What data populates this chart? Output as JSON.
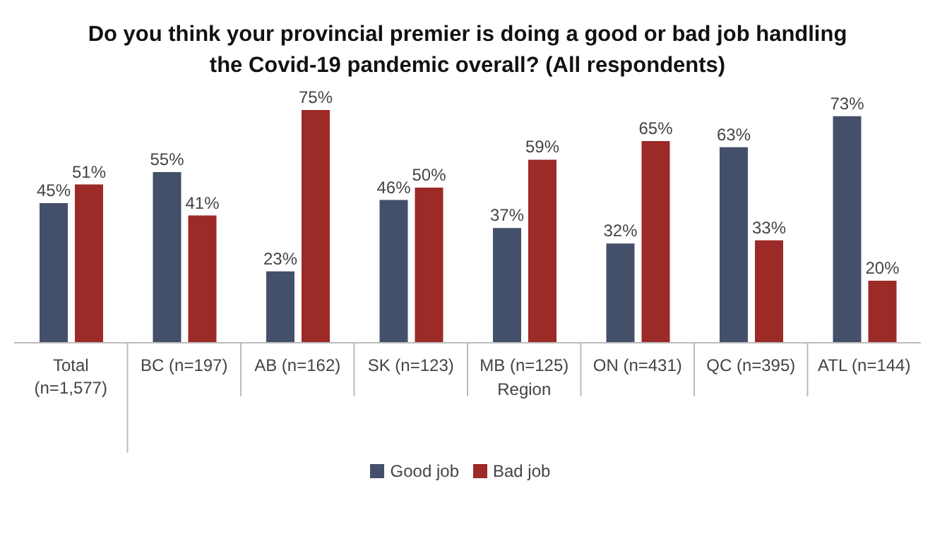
{
  "chart_data": {
    "type": "bar",
    "title": "Do you think your provincial premier is doing a good or bad job handling the Covid-19 pandemic overall? (All respondents)",
    "categories": [
      "Total (n=1,577)",
      "BC (n=197)",
      "AB (n=162)",
      "SK (n=123)",
      "MB (n=125)",
      "ON (n=431)",
      "QC (n=395)",
      "ATL (n=144)"
    ],
    "series": [
      {
        "name": "Good job",
        "color": "#44506a",
        "values": [
          45,
          55,
          23,
          46,
          37,
          32,
          63,
          73
        ],
        "value_labels": [
          "45%",
          "55%",
          "23%",
          "46%",
          "37%",
          "32%",
          "63%",
          "73%"
        ]
      },
      {
        "name": "Bad job",
        "color": "#9c2a26",
        "values": [
          51,
          41,
          75,
          50,
          59,
          65,
          33,
          20
        ],
        "value_labels": [
          "51%",
          "41%",
          "75%",
          "50%",
          "59%",
          "65%",
          "33%",
          "20%"
        ]
      }
    ],
    "annotations": [
      "Region"
    ],
    "legend": "bottom"
  }
}
